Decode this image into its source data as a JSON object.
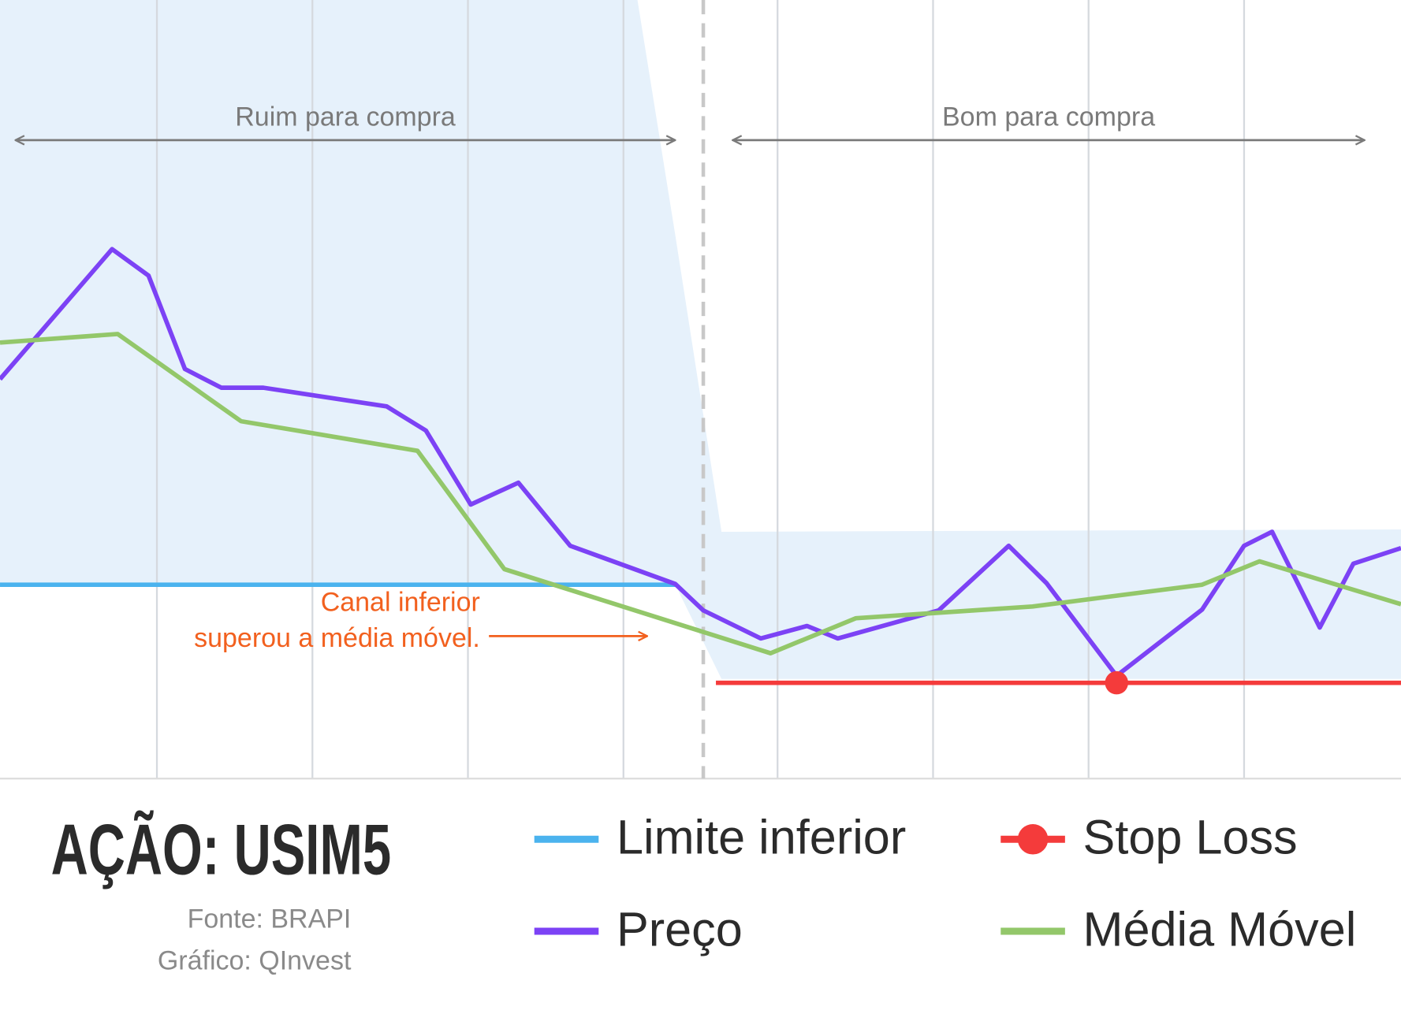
{
  "chart_data": {
    "type": "line",
    "title": "AÇÃO: USIM5",
    "source": "Fonte: BRAPI",
    "credit": "Gráfico: QInvest",
    "xlim": [
      0,
      100
    ],
    "ylim": [
      0,
      100
    ],
    "xticks": [
      11.2,
      22.3,
      33.4,
      44.5,
      55.5,
      66.6,
      77.7,
      88.8
    ],
    "grid": true,
    "divider_x": 50.2,
    "channel": {
      "color": "#e6f1fb",
      "x": [
        0,
        45.5,
        48.2,
        51.5,
        100
      ],
      "upper": [
        100,
        100,
        69.8,
        31.7,
        32.0
      ],
      "lower": [
        24.9,
        24.9,
        24.9,
        12.8,
        12.8
      ]
    },
    "series": [
      {
        "name": "Limite inferior",
        "color": "#4bb3ee",
        "x": [
          0,
          48.2
        ],
        "values": [
          24.9,
          24.9
        ]
      },
      {
        "name": "Preço",
        "color": "#7c42f5",
        "x": [
          0,
          8.0,
          10.6,
          13.2,
          15.8,
          18.8,
          27.6,
          30.4,
          33.6,
          37.0,
          40.7,
          48.2,
          50.2,
          54.3,
          57.6,
          59.8,
          67.0,
          72.0,
          74.7,
          79.7,
          85.8,
          88.8,
          90.8,
          94.2,
          96.6,
          100
        ],
        "values": [
          51.3,
          68.0,
          64.6,
          52.6,
          50.2,
          50.2,
          47.8,
          44.7,
          35.2,
          38.0,
          29.9,
          25.0,
          21.6,
          18.0,
          19.6,
          18.0,
          21.6,
          29.9,
          25.1,
          13.2,
          21.7,
          29.9,
          31.7,
          19.4,
          27.6,
          29.6
        ]
      },
      {
        "name": "Stop Loss",
        "color": "#f43b3b",
        "x": [
          51.1,
          79.7,
          100
        ],
        "values": [
          12.3,
          12.3,
          12.3
        ],
        "marker_index": 1
      },
      {
        "name": "Média Móvel",
        "color": "#93c76a",
        "x": [
          0,
          8.4,
          17.2,
          29.8,
          36.0,
          55.0,
          61.1,
          73.7,
          85.8,
          89.9,
          100
        ],
        "values": [
          56.0,
          57.1,
          45.9,
          42.1,
          26.9,
          16.1,
          20.6,
          22.1,
          24.9,
          27.9,
          22.4
        ]
      }
    ],
    "annotations": [
      {
        "text": [
          "Ruim para compra"
        ],
        "color": "#7a7a7a",
        "x_from": 1.1,
        "x_to": 48.2,
        "y": 82.0
      },
      {
        "text": [
          "Bom para compra"
        ],
        "color": "#7a7a7a",
        "x_from": 52.3,
        "x_to": 97.4,
        "y": 82.0
      },
      {
        "text": [
          "Canal inferior",
          "superou a média móvel."
        ],
        "color": "#f2601e",
        "x_from": 34.9,
        "x_to": 46.2,
        "y": 18.3
      }
    ]
  }
}
